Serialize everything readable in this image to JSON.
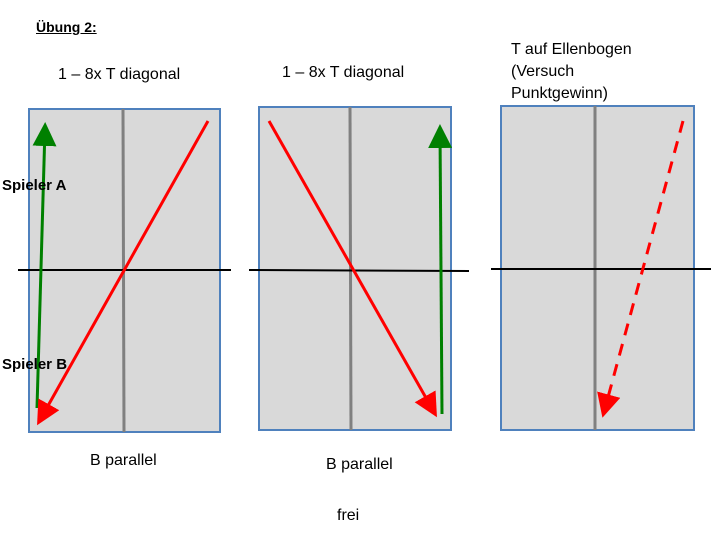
{
  "slide": {
    "title": "Übung 2:"
  },
  "diagrams": [
    {
      "heading": "1 – 8x T diagonal",
      "footer": "B parallel"
    },
    {
      "heading": "1 – 8x T diagonal",
      "footer": "B parallel"
    },
    {
      "heading_lines": [
        "T auf Ellenbogen",
        "(Versuch",
        "Punktgewinn)"
      ],
      "footer": "frei"
    }
  ],
  "players": {
    "a": "Spieler A",
    "b": "Spieler B"
  },
  "colors": {
    "court_fill": "#d9d9d9",
    "court_border": "#4f81bd",
    "center_line": "#808080",
    "net": "#000000",
    "cross_shot": "#ff0000",
    "parallel_shot": "#008000"
  }
}
